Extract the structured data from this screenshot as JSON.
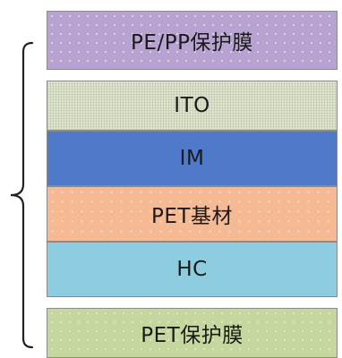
{
  "diagram": {
    "layers": [
      {
        "label": "PE/PP保护膜",
        "color": "#b7a2d2"
      },
      {
        "label": "ITO",
        "color": "#dfe5cf"
      },
      {
        "label": "IM",
        "color": "#4e7ac9"
      },
      {
        "label": "PET基材",
        "color": "#f5b993"
      },
      {
        "label": "HC",
        "color": "#8ecde0"
      },
      {
        "label": "PET保护膜",
        "color": "#c5d69e"
      }
    ],
    "brace_color": "#222222"
  }
}
